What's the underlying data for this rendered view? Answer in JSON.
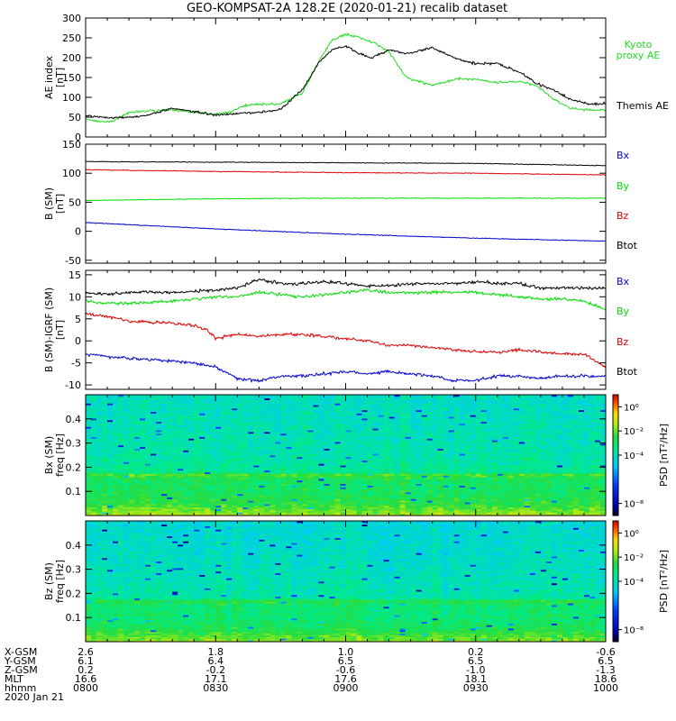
{
  "title": "GEO-KOMPSAT-2A 128.2E (2020-01-21) recalib dataset",
  "colors": {
    "bx": "#0000cc",
    "by": "#00dd00",
    "bz": "#dd0000",
    "btot": "#000000",
    "kyoto": "#22dd22",
    "themis": "#000000"
  },
  "chart_data": [
    {
      "type": "line",
      "panel": "AE",
      "ylabel_lines": [
        "AE index",
        "[nT]"
      ],
      "ylim": [
        0,
        300
      ],
      "yticks": [
        0,
        50,
        100,
        150,
        200,
        250,
        300
      ],
      "xlim": [
        0,
        120
      ],
      "legend": [
        {
          "label": "Kyoto",
          "color": "#22dd22"
        },
        {
          "label": "proxy AE",
          "color": "#22dd22"
        },
        {
          "label": "Themis AE",
          "color": "#000000"
        }
      ],
      "series": [
        {
          "name": "Kyoto proxy AE",
          "color": "#22dd22",
          "x": [
            0,
            3,
            6,
            10,
            14,
            20,
            26,
            30,
            33,
            37,
            40,
            45,
            50,
            54,
            57,
            60,
            63,
            66,
            70,
            74,
            80,
            86,
            90,
            95,
            100,
            104,
            108,
            112,
            116,
            120
          ],
          "y": [
            45,
            40,
            38,
            62,
            65,
            68,
            62,
            58,
            62,
            80,
            82,
            84,
            110,
            195,
            245,
            260,
            252,
            240,
            215,
            150,
            130,
            148,
            145,
            138,
            140,
            130,
            95,
            72,
            68,
            68
          ]
        },
        {
          "name": "Themis AE",
          "color": "#000000",
          "x": [
            0,
            3,
            6,
            10,
            14,
            20,
            26,
            30,
            33,
            37,
            40,
            45,
            50,
            54,
            57,
            60,
            63,
            66,
            70,
            74,
            80,
            86,
            90,
            95,
            100,
            104,
            108,
            112,
            116,
            120
          ],
          "y": [
            55,
            50,
            48,
            50,
            55,
            72,
            62,
            55,
            58,
            60,
            62,
            70,
            120,
            190,
            220,
            230,
            210,
            200,
            220,
            210,
            225,
            195,
            185,
            185,
            165,
            135,
            118,
            95,
            82,
            85
          ]
        }
      ]
    },
    {
      "type": "line",
      "panel": "B_GSM",
      "ylabel_lines": [
        "B (SM)",
        "[nT]"
      ],
      "ylim": [
        -55,
        150
      ],
      "yticks": [
        -50,
        0,
        50,
        100,
        150
      ],
      "xlim": [
        0,
        120
      ],
      "legend": [
        {
          "label": "Bx",
          "color": "#0000cc"
        },
        {
          "label": "By",
          "color": "#00dd00"
        },
        {
          "label": "Bz",
          "color": "#dd0000"
        },
        {
          "label": "Btot",
          "color": "#000000"
        }
      ],
      "series": [
        {
          "name": "Btot",
          "color": "#000000",
          "x": [
            0,
            30,
            60,
            90,
            120
          ],
          "y": [
            120,
            119,
            118,
            117,
            113
          ]
        },
        {
          "name": "Bz",
          "color": "#dd0000",
          "x": [
            0,
            30,
            60,
            90,
            120
          ],
          "y": [
            106,
            103,
            101,
            100,
            97
          ]
        },
        {
          "name": "By",
          "color": "#00dd00",
          "x": [
            0,
            30,
            60,
            90,
            120
          ],
          "y": [
            53,
            56,
            57,
            57,
            57
          ]
        },
        {
          "name": "Bx",
          "color": "#0000cc",
          "x": [
            0,
            30,
            60,
            90,
            120
          ],
          "y": [
            15,
            4,
            -5,
            -12,
            -17
          ]
        }
      ]
    },
    {
      "type": "line",
      "panel": "B_minus_IGRF",
      "ylabel_lines": [
        "B (SM)-IGRF (SM)",
        "[nT]"
      ],
      "ylim": [
        -11,
        16
      ],
      "yticks": [
        -10,
        -5,
        0,
        5,
        10,
        15
      ],
      "xlim": [
        0,
        120
      ],
      "legend": [
        {
          "label": "Bx",
          "color": "#0000cc"
        },
        {
          "label": "By",
          "color": "#00dd00"
        },
        {
          "label": "Bz",
          "color": "#dd0000"
        },
        {
          "label": "Btot",
          "color": "#000000"
        }
      ],
      "series": [
        {
          "name": "Btot",
          "color": "#000000",
          "x": [
            0,
            5,
            10,
            20,
            30,
            35,
            40,
            45,
            50,
            55,
            60,
            65,
            70,
            75,
            80,
            85,
            90,
            95,
            100,
            105,
            110,
            115,
            120
          ],
          "y": [
            11,
            10.5,
            11,
            11,
            11.5,
            12,
            14,
            13,
            13,
            13.5,
            13,
            12.5,
            12.5,
            13,
            13,
            13,
            13.5,
            13,
            13,
            12,
            12,
            12,
            12
          ]
        },
        {
          "name": "By",
          "color": "#00dd00",
          "x": [
            0,
            5,
            10,
            20,
            30,
            35,
            40,
            45,
            50,
            55,
            60,
            65,
            70,
            75,
            80,
            85,
            90,
            95,
            100,
            105,
            110,
            115,
            120
          ],
          "y": [
            9,
            8.5,
            8.5,
            9,
            10,
            10,
            11,
            10.5,
            10,
            10.5,
            11,
            11.5,
            11,
            11,
            11,
            11,
            11,
            10.5,
            10,
            9.5,
            9.5,
            9,
            7
          ]
        },
        {
          "name": "Bz",
          "color": "#dd0000",
          "x": [
            0,
            5,
            10,
            20,
            25,
            28,
            30,
            35,
            40,
            45,
            50,
            55,
            60,
            65,
            70,
            75,
            80,
            85,
            90,
            95,
            100,
            105,
            110,
            115,
            120
          ],
          "y": [
            6,
            5.5,
            4.5,
            4,
            3.5,
            2.5,
            0.5,
            1.5,
            1,
            1.5,
            1.5,
            1,
            0.5,
            0,
            -1,
            -1,
            -1.5,
            -2,
            -2.5,
            -2.5,
            -2,
            -2.5,
            -3,
            -3,
            -6
          ]
        },
        {
          "name": "Bx",
          "color": "#0000cc",
          "x": [
            0,
            5,
            10,
            20,
            25,
            30,
            35,
            40,
            45,
            50,
            55,
            60,
            65,
            70,
            75,
            80,
            85,
            90,
            95,
            100,
            105,
            110,
            115,
            120
          ],
          "y": [
            -3,
            -3.5,
            -4,
            -4.5,
            -5,
            -6,
            -8.5,
            -9,
            -8,
            -8,
            -7.5,
            -7,
            -7.5,
            -7,
            -7.5,
            -8,
            -9,
            -9,
            -8,
            -8,
            -8.5,
            -8,
            -8,
            -8
          ]
        }
      ]
    },
    {
      "type": "heatmap",
      "panel": "Bx_spectrogram",
      "ylabel_lines": [
        "Bx (SM)",
        "freq [Hz]"
      ],
      "ylim": [
        0,
        0.5
      ],
      "yticks": [
        0.1,
        0.2,
        0.3,
        0.4
      ],
      "ytick_labels": [
        "0.1",
        "0.2",
        "0.3",
        "0.4"
      ],
      "colorbar": {
        "label": "PSD [nT²/Hz]",
        "range_log10": [
          -9,
          1
        ],
        "ticks": [
          {
            "v": 0,
            "label": "10⁰"
          },
          {
            "v": -2,
            "label": "10⁻²"
          },
          {
            "v": -4,
            "label": "10⁻⁴"
          },
          {
            "v": -8,
            "label": "10⁻⁸"
          }
        ]
      },
      "log10_psd_profile": {
        "freq": [
          0.0,
          0.01,
          0.05,
          0.1,
          0.15,
          0.17,
          0.18,
          0.25,
          0.35,
          0.5
        ],
        "value": [
          -1.2,
          -1.8,
          -2.6,
          -3.0,
          -3.0,
          -2.3,
          -3.6,
          -3.9,
          -4.0,
          -4.2
        ]
      }
    },
    {
      "type": "heatmap",
      "panel": "Bz_spectrogram",
      "ylabel_lines": [
        "Bz (SM)",
        "freq [Hz]"
      ],
      "ylim": [
        0,
        0.5
      ],
      "yticks": [
        0.1,
        0.2,
        0.3,
        0.4
      ],
      "ytick_labels": [
        "0.1",
        "0.2",
        "0.3",
        "0.4"
      ],
      "colorbar": {
        "label": "PSD [nT²/Hz]",
        "range_log10": [
          -9,
          1
        ],
        "ticks": [
          {
            "v": 0,
            "label": "10⁰"
          },
          {
            "v": -2,
            "label": "10⁻²"
          },
          {
            "v": -4,
            "label": "10⁻⁴"
          },
          {
            "v": -8,
            "label": "10⁻⁸"
          }
        ]
      },
      "log10_psd_profile": {
        "freq": [
          0.0,
          0.01,
          0.05,
          0.1,
          0.15,
          0.17,
          0.18,
          0.25,
          0.35,
          0.5
        ],
        "value": [
          -1.5,
          -2.0,
          -2.8,
          -3.2,
          -3.2,
          -2.6,
          -3.8,
          -4.0,
          -4.2,
          -4.4
        ]
      }
    }
  ],
  "time_axis": {
    "tick_times_min": [
      0,
      30,
      60,
      90,
      120
    ],
    "rows": [
      {
        "label": "X-GSM",
        "values": [
          "2.6",
          "1.8",
          "1.0",
          "0.2",
          "-0.6"
        ]
      },
      {
        "label": "Y-GSM",
        "values": [
          "6.1",
          "6.4",
          "6.5",
          "6.5",
          "6.5"
        ]
      },
      {
        "label": "Z-GSM",
        "values": [
          "0.2",
          "-0.2",
          "-0.6",
          "-1.0",
          "-1.3"
        ]
      },
      {
        "label": "MLT",
        "values": [
          "16.6",
          "17.1",
          "17.6",
          "18.1",
          "18.6"
        ]
      },
      {
        "label": "hhmm",
        "values": [
          "0800",
          "0830",
          "0900",
          "0930",
          "1000"
        ]
      }
    ],
    "date": "2020 Jan 21"
  }
}
